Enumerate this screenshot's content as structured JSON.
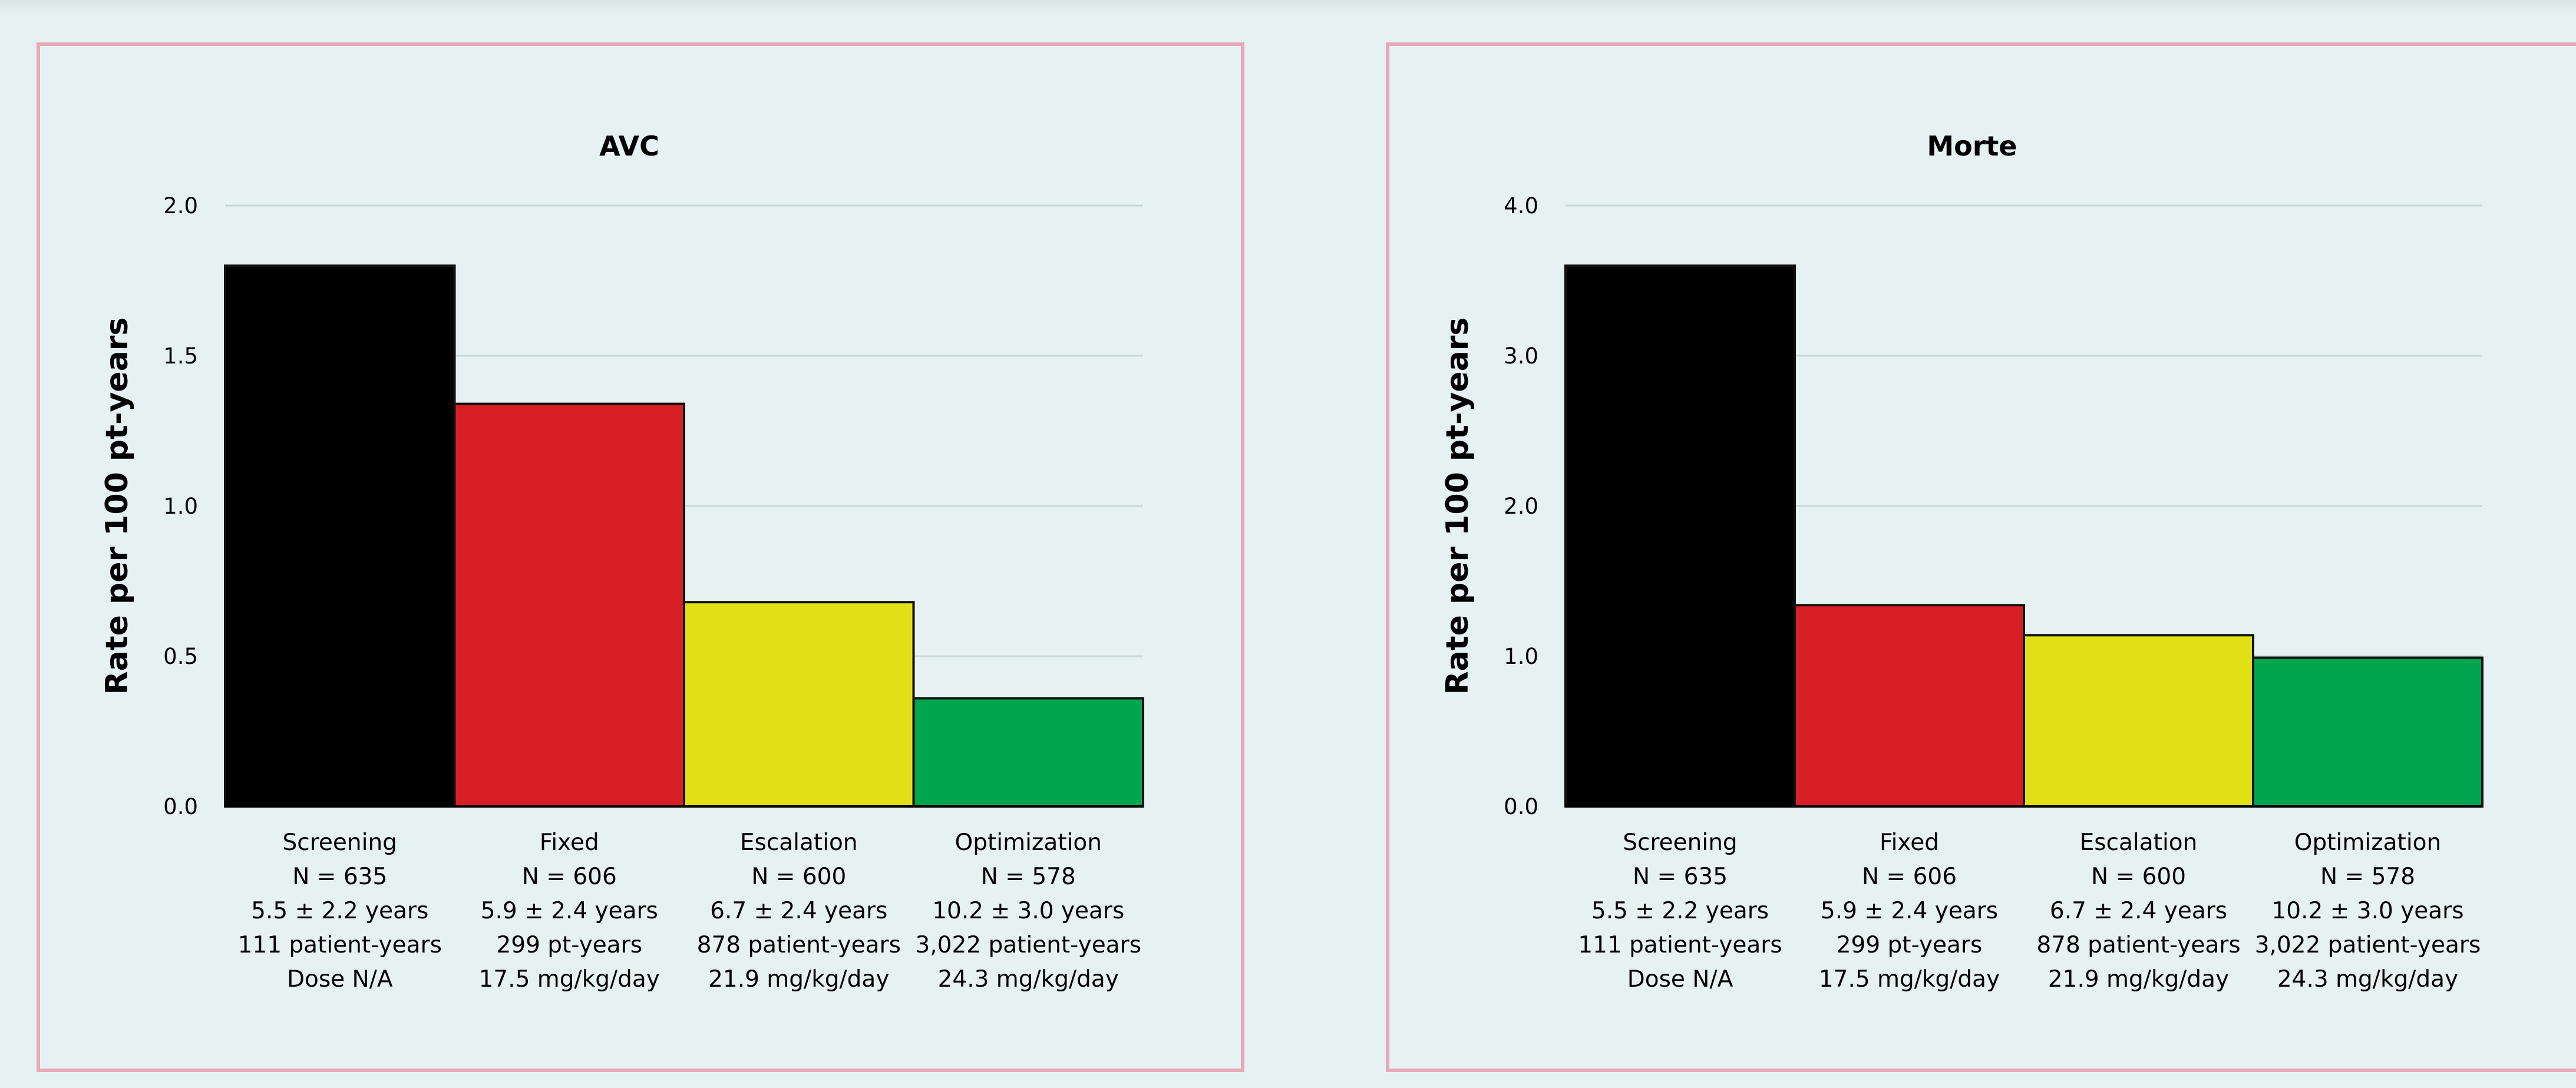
{
  "chart_data": [
    {
      "type": "bar",
      "title": "AVC",
      "ylabel": "Rate per 100 pt-years",
      "xlabel": "",
      "ylim": [
        0,
        2.0
      ],
      "yticks": [
        "0.0",
        "0.5",
        "1.0",
        "1.5",
        "2.0"
      ],
      "ytick_values": [
        0,
        0.5,
        1.0,
        1.5,
        2.0
      ],
      "grid": true,
      "categories": [
        "Screening",
        "Fixed",
        "Escalation",
        "Optimization"
      ],
      "category_details": [
        [
          "Screening",
          "N = 635",
          "5.5 ± 2.2 years",
          "111 patient-years",
          "Dose N/A"
        ],
        [
          "Fixed",
          "N = 606",
          "5.9 ± 2.4 years",
          "299 pt-years",
          "17.5 mg/kg/day"
        ],
        [
          "Escalation",
          "N = 600",
          "6.7 ± 2.4 years",
          "878 patient-years",
          "21.9 mg/kg/day"
        ],
        [
          "Optimization",
          "N = 578",
          "10.2 ± 3.0 years",
          "3,022 patient-years",
          "24.3 mg/kg/day"
        ]
      ],
      "values": [
        1.8,
        1.34,
        0.68,
        0.36
      ],
      "colors": [
        "#000000",
        "#d91f26",
        "#e1e016",
        "#00a54f"
      ]
    },
    {
      "type": "bar",
      "title": "Morte",
      "ylabel": "Rate per 100 pt-years",
      "xlabel": "",
      "ylim": [
        0,
        4.0
      ],
      "yticks": [
        "0.0",
        "1.0",
        "2.0",
        "3.0",
        "4.0"
      ],
      "ytick_values": [
        0,
        1.0,
        2.0,
        3.0,
        4.0
      ],
      "grid": true,
      "categories": [
        "Screening",
        "Fixed",
        "Escalation",
        "Optimization"
      ],
      "category_details": [
        [
          "Screening",
          "N = 635",
          "5.5 ± 2.2 years",
          "111 patient-years",
          "Dose N/A"
        ],
        [
          "Fixed",
          "N = 606",
          "5.9 ± 2.4 years",
          "299 pt-years",
          "17.5 mg/kg/day"
        ],
        [
          "Escalation",
          "N = 600",
          "6.7 ± 2.4 years",
          "878 patient-years",
          "21.9 mg/kg/day"
        ],
        [
          "Optimization",
          "N = 578",
          "10.2 ± 3.0 years",
          "3,022 patient-years",
          "24.3 mg/kg/day"
        ]
      ],
      "values": [
        3.6,
        1.34,
        1.14,
        0.99
      ],
      "colors": [
        "#000000",
        "#d91f26",
        "#e1e016",
        "#00a54f"
      ]
    }
  ]
}
